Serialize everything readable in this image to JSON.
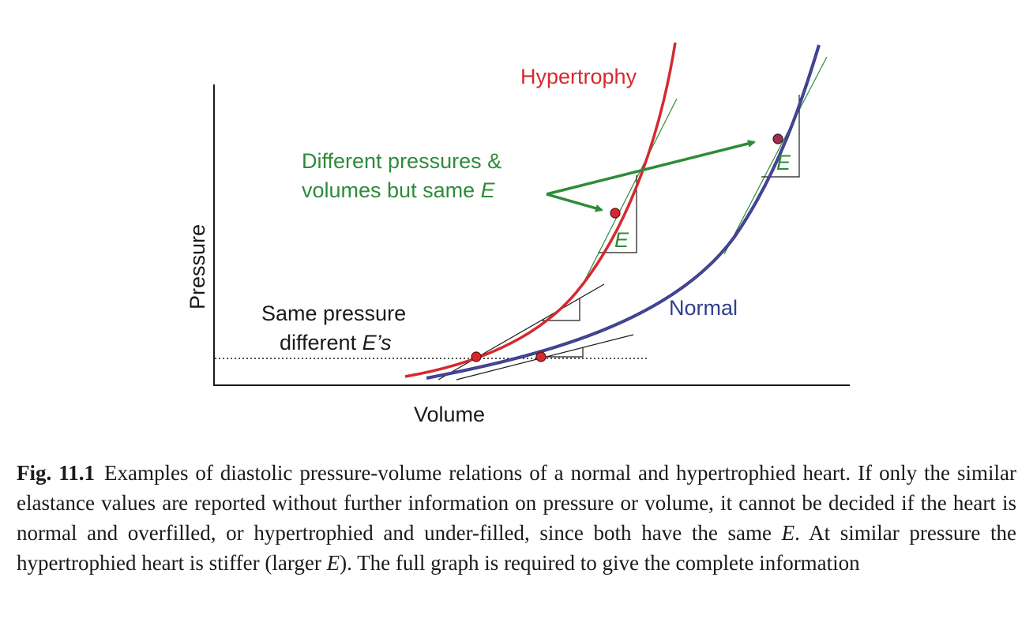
{
  "figure": {
    "axes": {
      "x_label": "Volume",
      "y_label": "Pressure"
    },
    "curves": {
      "hypertrophy": {
        "label": "Hypertrophy",
        "color": "#d42a2f"
      },
      "normal": {
        "label": "Normal",
        "color": "#2f3f8c"
      }
    },
    "annotations": {
      "top_line1": "Different pressures &",
      "top_line2_prefix": "volumes but same ",
      "top_line2_symbol": "E",
      "bottom_line1": "Same pressure",
      "bottom_line2_prefix": "different ",
      "bottom_line2_symbol": "E’s",
      "elastance_symbol": "E"
    },
    "colors": {
      "annotation_green": "#2e8b3a",
      "axis": "#1a1a1a"
    }
  },
  "caption": {
    "figure_number": "Fig. 11.1",
    "part1": "Examples of diastolic pressure-volume relations of a normal and hypertrophied heart. If only the similar elastance values are reported without further information on pressure or volume, it cannot be decided if the heart is normal and overfilled, or hypertrophied and under-filled, since both have the same ",
    "symbol1": "E",
    "part2": ". At similar pressure the hypertrophied heart is stiffer (larger ",
    "symbol2": "E",
    "part3": "). The full graph is required to give the complete information"
  }
}
